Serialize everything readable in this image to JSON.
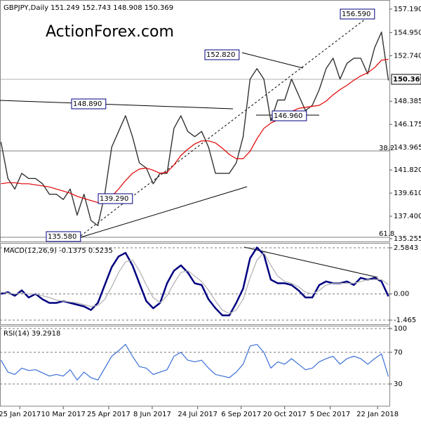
{
  "chart_data": [
    {
      "type": "line",
      "title": "GBPJPY,Daily  151.249 152.743 148.908 150.369",
      "watermark": "ActionForex.com",
      "x": [
        "2017-01-06",
        "2017-01-13",
        "2017-01-20",
        "2017-01-27",
        "2017-02-03",
        "2017-02-10",
        "2017-02-17",
        "2017-02-24",
        "2017-03-03",
        "2017-03-10",
        "2017-03-17",
        "2017-03-24",
        "2017-03-31",
        "2017-04-07",
        "2017-04-14",
        "2017-04-21",
        "2017-04-28",
        "2017-05-05",
        "2017-05-12",
        "2017-05-19",
        "2017-05-26",
        "2017-06-02",
        "2017-06-09",
        "2017-06-16",
        "2017-06-23",
        "2017-06-30",
        "2017-07-07",
        "2017-07-14",
        "2017-07-21",
        "2017-07-28",
        "2017-08-04",
        "2017-08-11",
        "2017-08-18",
        "2017-08-25",
        "2017-09-01",
        "2017-09-08",
        "2017-09-15",
        "2017-09-22",
        "2017-09-29",
        "2017-10-06",
        "2017-10-13",
        "2017-10-20",
        "2017-10-27",
        "2017-11-03",
        "2017-11-10",
        "2017-11-17",
        "2017-11-24",
        "2017-12-01",
        "2017-12-08",
        "2017-12-15",
        "2017-12-22",
        "2017-12-29",
        "2018-01-05",
        "2018-01-12",
        "2018-01-19",
        "2018-01-26",
        "2018-02-02"
      ],
      "xlim": [
        "2017-01-05",
        "2018-02-03"
      ],
      "xticks": [
        {
          "value": "2017-01-25",
          "label": "25 Jan 2017"
        },
        {
          "value": "2017-03-10",
          "label": "10 Mar 2017"
        },
        {
          "value": "2017-04-25",
          "label": "25 Apr 2017"
        },
        {
          "value": "2017-06-08",
          "label": "8 Jun 2017"
        },
        {
          "value": "2017-07-24",
          "label": "24 Jul 2017"
        },
        {
          "value": "2017-09-06",
          "label": "6 Sep 2017"
        },
        {
          "value": "2017-10-20",
          "label": "20 Oct 2017"
        },
        {
          "value": "2017-12-05",
          "label": "5 Dec 2017"
        },
        {
          "value": "2018-01-22",
          "label": "22 Jan 2018"
        }
      ],
      "ylim": [
        134.92,
        157.99
      ],
      "yticks": [
        {
          "value": 157.19,
          "label": "157.190"
        },
        {
          "value": 154.95,
          "label": "154.950"
        },
        {
          "value": 152.74,
          "label": "152.740"
        },
        {
          "value": 148.385,
          "label": "148.385"
        },
        {
          "value": 146.175,
          "label": "146.175"
        },
        143.965,
        {
          "value": 141.82,
          "label": "141.820"
        },
        {
          "value": 139.61,
          "label": "139.610"
        },
        {
          "value": 137.4,
          "label": "137.400"
        },
        135.255
      ],
      "series": [
        {
          "color": "#333333",
          "values": [
            144.5,
            141,
            140,
            141.5,
            141,
            141,
            140.5,
            139.5,
            139.5,
            139,
            140,
            137.5,
            139.5,
            137,
            136.5,
            139.5,
            144,
            145.5,
            147,
            145,
            142.5,
            142,
            140.5,
            141.5,
            141.5,
            145.8,
            147,
            145.5,
            145,
            145.5,
            144,
            141.5,
            141.5,
            141.5,
            142.5,
            145,
            150.5,
            151.5,
            150.5,
            146.5,
            148.5,
            148.5,
            150.5,
            149,
            147.5,
            148,
            149.5,
            151.5,
            152.5,
            150.5,
            152,
            152.5,
            152.5,
            151,
            153.5,
            155,
            150.369
          ]
        },
        {
          "color": "#e00000",
          "values": [
            140.5,
            140.6,
            140.6,
            140.5,
            140.5,
            140.4,
            140.3,
            140.2,
            140.0,
            139.8,
            139.6,
            139.3,
            139.1,
            138.9,
            138.7,
            138.8,
            139.3,
            140.0,
            140.8,
            141.5,
            141.9,
            142.0,
            141.8,
            141.5,
            141.6,
            142.3,
            143.2,
            143.8,
            144.3,
            144.6,
            144.6,
            144.4,
            143.9,
            143.3,
            142.9,
            142.9,
            143.6,
            144.8,
            145.8,
            146.3,
            146.6,
            147.0,
            147.4,
            147.7,
            147.8,
            147.9,
            148.0,
            148.4,
            149.0,
            149.5,
            149.9,
            150.4,
            150.8,
            151.1,
            151.6,
            152.3,
            152.4
          ]
        }
      ],
      "annotations": [
        {
          "text": "156.590"
        },
        {
          "text": "152.820"
        },
        {
          "text": "148.890"
        },
        {
          "text": "146.960"
        },
        {
          "text": "139.290"
        },
        {
          "text": "135.580"
        },
        {
          "text": "150.369"
        },
        {
          "text": "38.2"
        },
        {
          "text": "61.8"
        }
      ]
    },
    {
      "type": "line",
      "title": "MACD(12,26,9) -0.1375 0.5235",
      "ylim": [
        -1.74,
        2.82
      ],
      "yticks": [
        2.5843,
        {
          "value": 0,
          "label": "0.00"
        },
        -1.465
      ],
      "series": [
        {
          "color": "#000080",
          "values": [
            0.0,
            0.1,
            -0.1,
            0.2,
            -0.2,
            0.0,
            -0.3,
            -0.5,
            -0.5,
            -0.4,
            -0.5,
            -0.6,
            -0.7,
            -0.9,
            -0.5,
            0.5,
            1.5,
            2.1,
            2.3,
            1.6,
            0.6,
            -0.4,
            -0.8,
            -0.5,
            0.6,
            1.3,
            1.6,
            1.2,
            0.6,
            0.5,
            -0.3,
            -0.8,
            -1.2,
            -1.2,
            -0.5,
            0.3,
            2.0,
            2.6,
            2.2,
            0.8,
            0.6,
            0.6,
            0.5,
            0.2,
            -0.2,
            -0.2,
            0.5,
            0.7,
            0.6,
            0.6,
            0.7,
            0.5,
            0.9,
            0.8,
            0.9,
            0.7,
            -0.1375
          ]
        },
        {
          "color": "#b0b0b0",
          "values": [
            0.1,
            0.05,
            0.0,
            0.05,
            0.0,
            0.0,
            -0.1,
            -0.2,
            -0.35,
            -0.4,
            -0.45,
            -0.5,
            -0.6,
            -0.7,
            -0.65,
            -0.3,
            0.4,
            1.2,
            1.8,
            1.9,
            1.3,
            0.5,
            -0.2,
            -0.5,
            -0.1,
            0.6,
            1.2,
            1.3,
            1.0,
            0.7,
            0.2,
            -0.4,
            -0.9,
            -1.1,
            -0.9,
            -0.3,
            0.9,
            1.9,
            2.3,
            1.6,
            1.0,
            0.7,
            0.6,
            0.4,
            0.1,
            0.0,
            0.2,
            0.5,
            0.6,
            0.6,
            0.6,
            0.6,
            0.7,
            0.8,
            0.8,
            0.8,
            0.5235
          ]
        }
      ]
    },
    {
      "type": "line",
      "title": "RSI(14) 39.2918",
      "ylim": [
        1.6,
        102.7
      ],
      "yticks": [
        100,
        70,
        30
      ],
      "series": [
        {
          "color": "#3a6fd8",
          "values": [
            60,
            45,
            42,
            50,
            47,
            48,
            44,
            40,
            42,
            40,
            48,
            35,
            45,
            38,
            35,
            50,
            65,
            72,
            80,
            65,
            52,
            50,
            42,
            45,
            48,
            65,
            70,
            60,
            58,
            60,
            50,
            42,
            40,
            38,
            45,
            55,
            78,
            80,
            70,
            50,
            58,
            55,
            62,
            55,
            48,
            50,
            58,
            62,
            65,
            55,
            62,
            65,
            62,
            55,
            62,
            68,
            39.2918
          ]
        }
      ]
    }
  ]
}
